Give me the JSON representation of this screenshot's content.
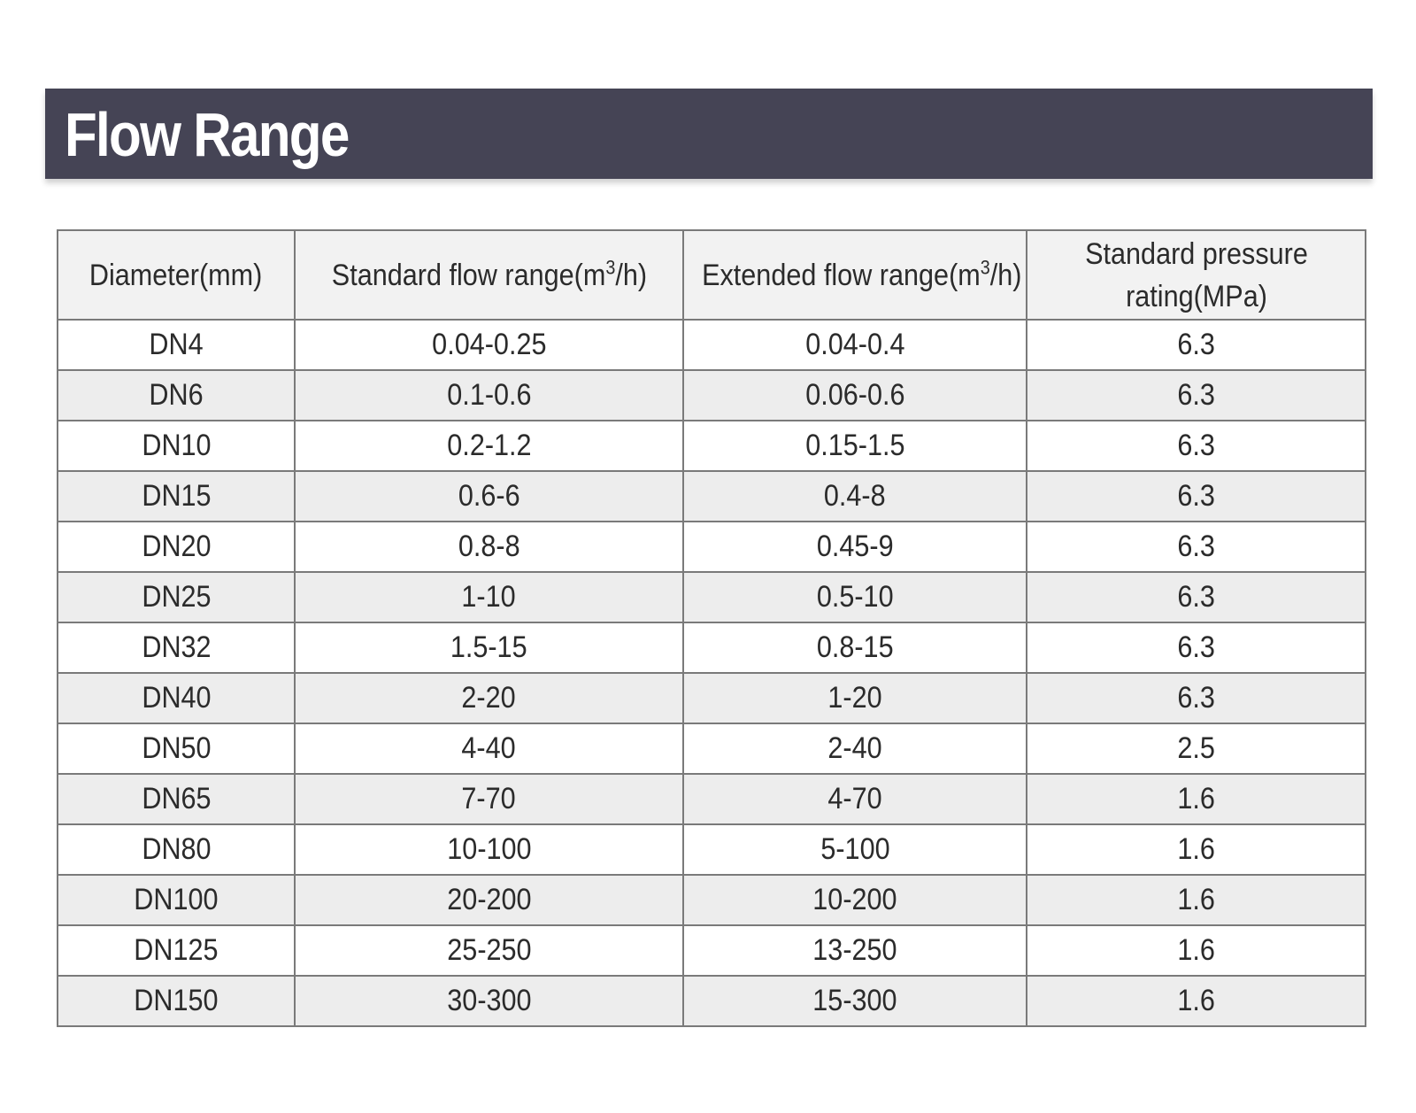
{
  "header": {
    "title": "Flow Range"
  },
  "table": {
    "columns": [
      {
        "pre": "Diameter(mm)",
        "sup": "",
        "post": ""
      },
      {
        "pre": "Standard flow range(m",
        "sup": "3",
        "post": "/h)"
      },
      {
        "pre": "Extended flow range(m",
        "sup": "3",
        "post": "/h)"
      },
      {
        "pre": "Standard pressure rating(MPa)",
        "sup": "",
        "post": ""
      }
    ],
    "rows": [
      [
        "DN4",
        "0.04-0.25",
        "0.04-0.4",
        "6.3"
      ],
      [
        "DN6",
        "0.1-0.6",
        "0.06-0.6",
        "6.3"
      ],
      [
        "DN10",
        "0.2-1.2",
        "0.15-1.5",
        "6.3"
      ],
      [
        "DN15",
        "0.6-6",
        "0.4-8",
        "6.3"
      ],
      [
        "DN20",
        "0.8-8",
        "0.45-9",
        "6.3"
      ],
      [
        "DN25",
        "1-10",
        "0.5-10",
        "6.3"
      ],
      [
        "DN32",
        "1.5-15",
        "0.8-15",
        "6.3"
      ],
      [
        "DN40",
        "2-20",
        "1-20",
        "6.3"
      ],
      [
        "DN50",
        "4-40",
        "2-40",
        "2.5"
      ],
      [
        "DN65",
        "7-70",
        "4-70",
        "1.6"
      ],
      [
        "DN80",
        "10-100",
        "5-100",
        "1.6"
      ],
      [
        "DN100",
        "20-200",
        "10-200",
        "1.6"
      ],
      [
        "DN125",
        "25-250",
        "13-250",
        "1.6"
      ],
      [
        "DN150",
        "30-300",
        "15-300",
        "1.6"
      ]
    ]
  },
  "colors": {
    "title_bar": "#454455",
    "header_row": "#f2f2f2",
    "stripe_row": "#ededed",
    "border": "#7a7a7a"
  }
}
